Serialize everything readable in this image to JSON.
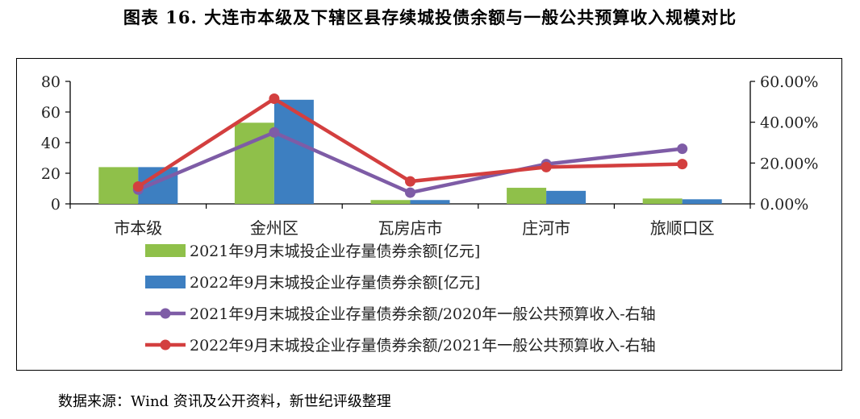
{
  "title": "图表 16.  大连市本级及下辖区县存续城投债余额与一般公共预算收入规模对比",
  "source": "数据来源：Wind 资讯及公开资料，新世纪评级整理",
  "chart_data": {
    "type": "bar",
    "categories": [
      "市本级",
      "金州区",
      "瓦房店市",
      "庄河市",
      "旅顺口区"
    ],
    "series": [
      {
        "name": "2021年9月末城投企业存量债券余额[亿元]",
        "kind": "bar",
        "axis": "left",
        "color": "#8fc04a",
        "values": [
          24,
          53,
          2.5,
          10.5,
          3.5
        ]
      },
      {
        "name": "2022年9月末城投企业存量债券余额[亿元]",
        "kind": "bar",
        "axis": "left",
        "color": "#3d7fc1",
        "values": [
          24,
          68,
          2.5,
          8.5,
          3
        ]
      },
      {
        "name": "2021年9月末城投企业存量债券余额/2020年一般公共预算收入-右轴",
        "kind": "line",
        "axis": "right",
        "color": "#7e5ca6",
        "values": [
          7,
          35,
          5.5,
          19.5,
          27
        ]
      },
      {
        "name": "2022年9月末城投企业存量债券余额/2021年一般公共预算收入-右轴",
        "kind": "line",
        "axis": "right",
        "color": "#d33f3f",
        "values": [
          8.5,
          51.5,
          11,
          18,
          19.5
        ]
      }
    ],
    "y_left": {
      "min": 0,
      "max": 80,
      "ticks": [
        "0",
        "20",
        "40",
        "60",
        "80"
      ]
    },
    "y_right": {
      "min": 0,
      "max": 60,
      "ticks": [
        "0.00%",
        "20.00%",
        "40.00%",
        "60.00%"
      ]
    },
    "legend_position": "bottom",
    "grid": false
  }
}
